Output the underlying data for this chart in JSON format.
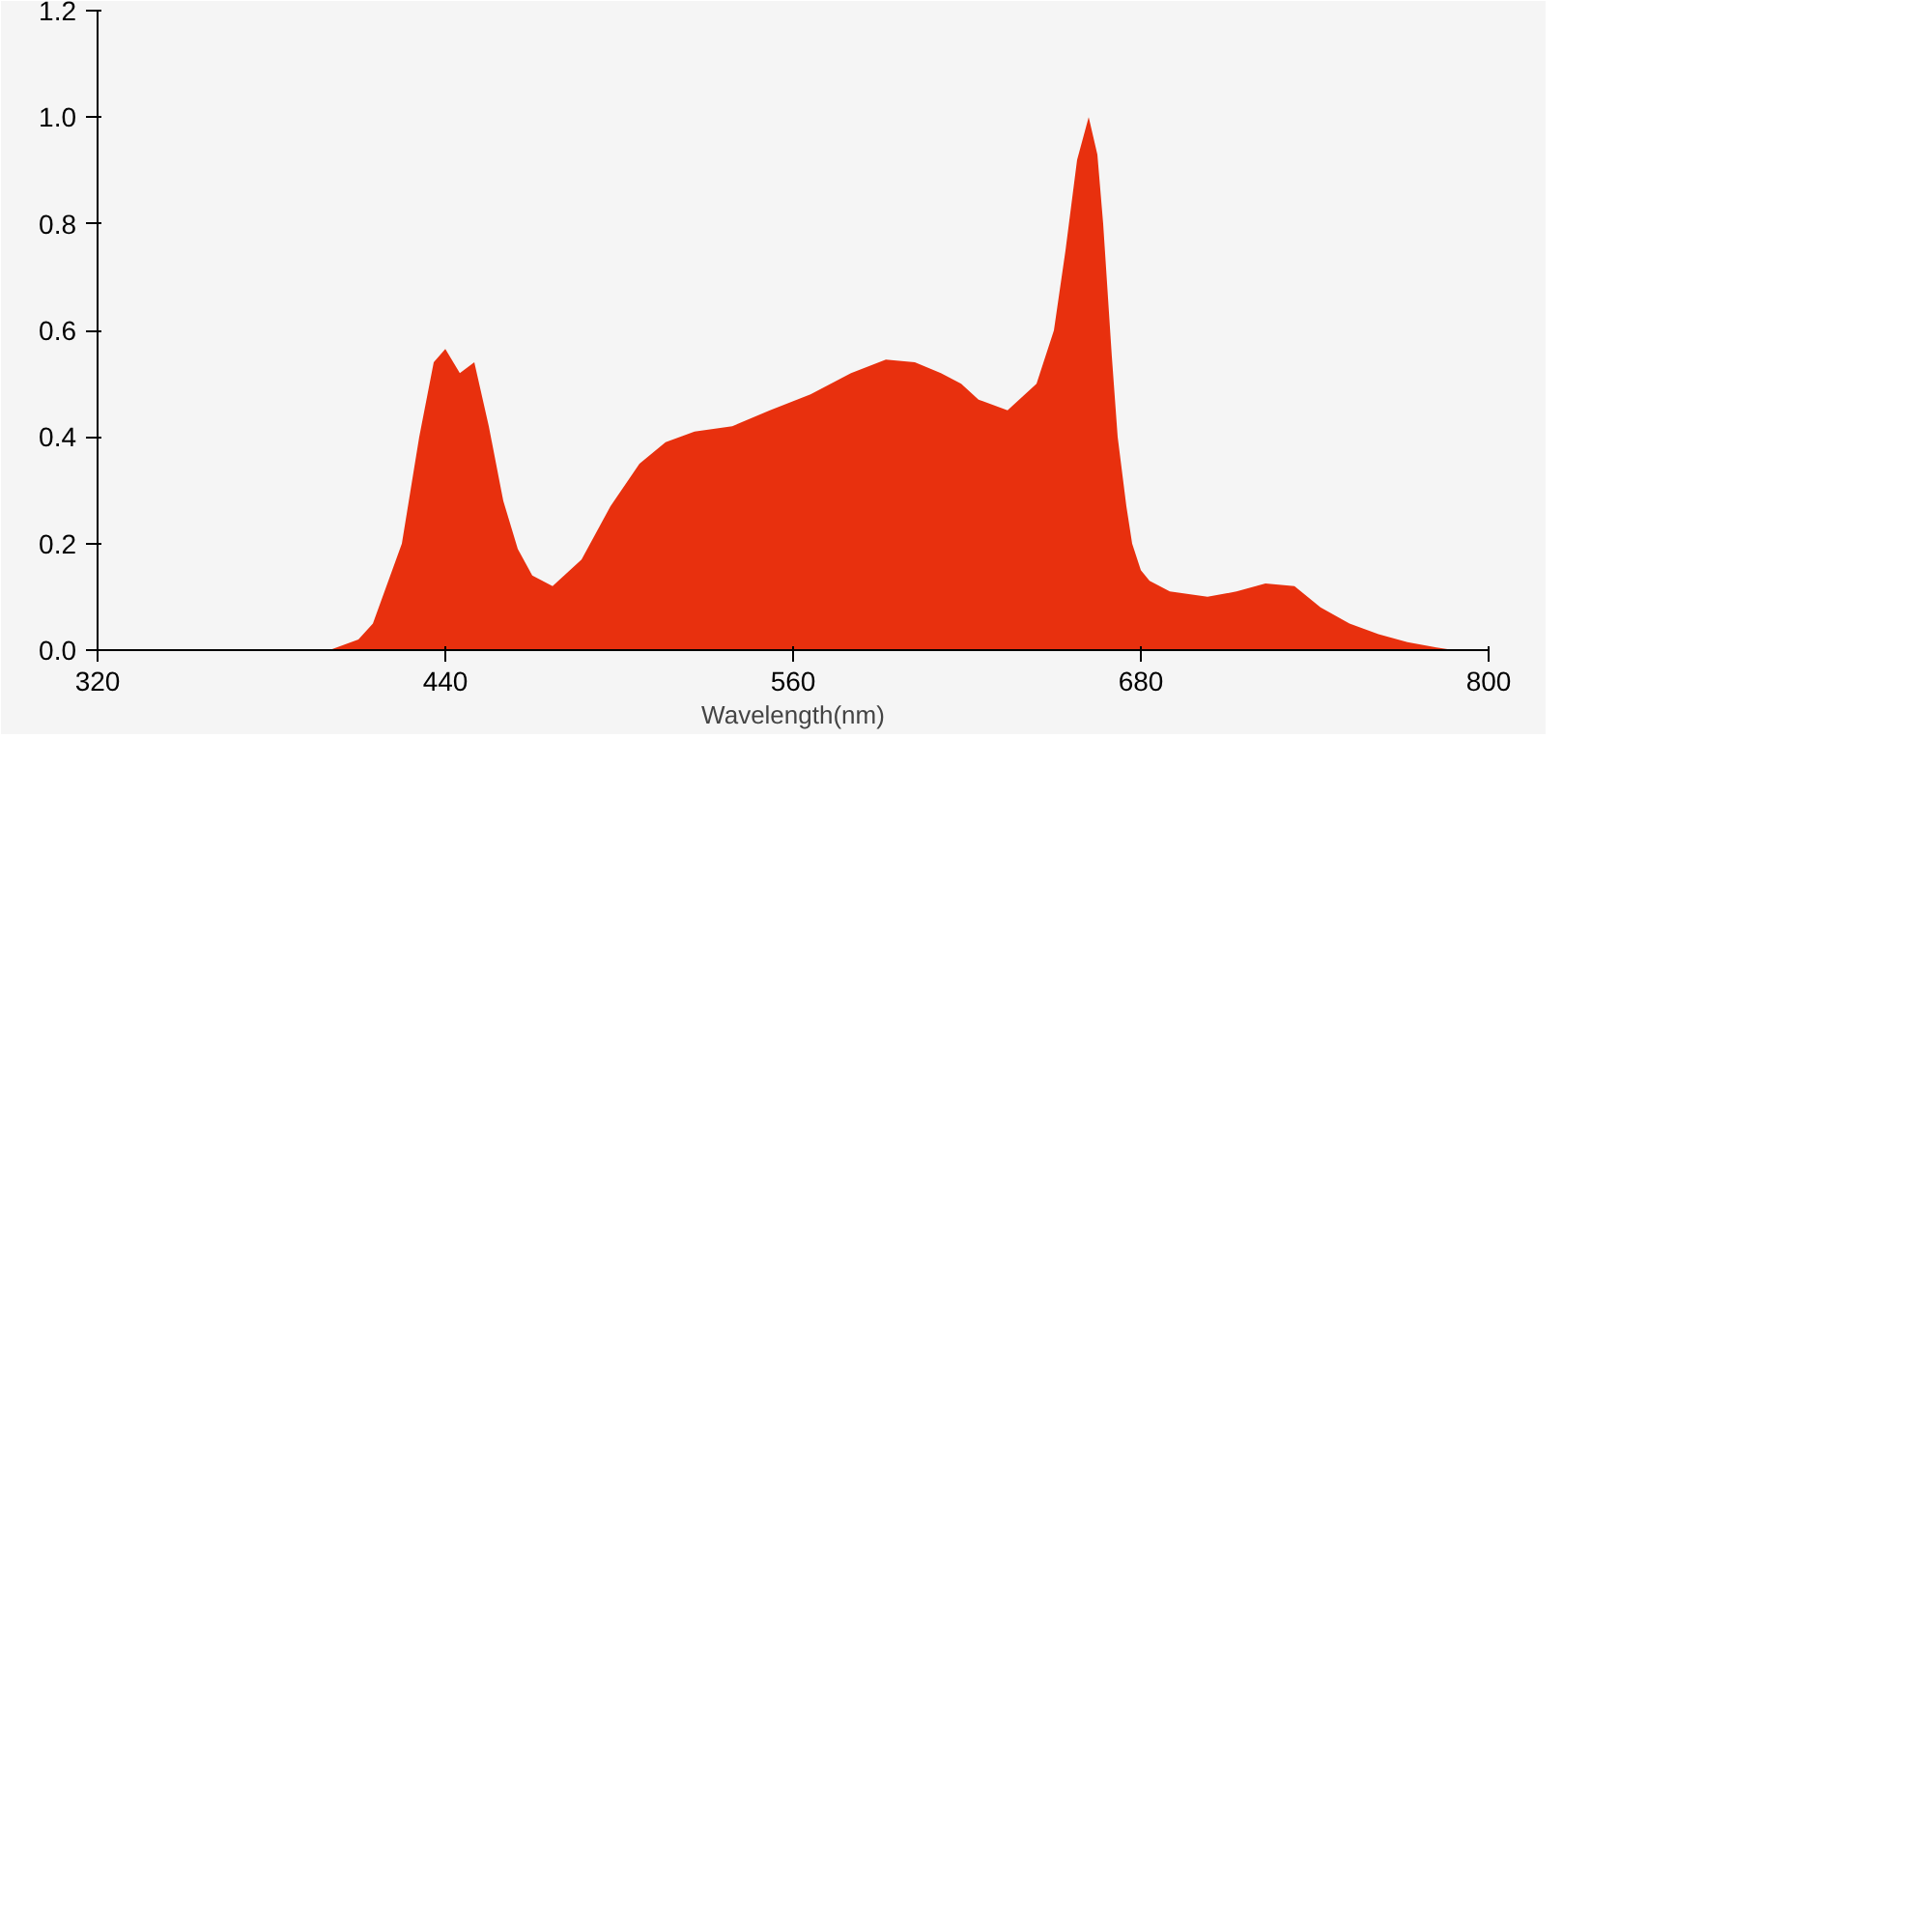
{
  "chart_data": {
    "type": "area",
    "xlabel": "Wavelength(nm)",
    "color": "#e8300e",
    "x": [
      400,
      410,
      415,
      425,
      431,
      436,
      440,
      445,
      450,
      455,
      460,
      465,
      470,
      477,
      487,
      497,
      507,
      516,
      526,
      539,
      552,
      566,
      580,
      592,
      602,
      611,
      618,
      624,
      634,
      644,
      650,
      654,
      658,
      662,
      665,
      667,
      670,
      672,
      675,
      677,
      680,
      683,
      690,
      703,
      713,
      723,
      733,
      742,
      752,
      762,
      772,
      782,
      788
    ],
    "values": [
      0.0,
      0.02,
      0.05,
      0.2,
      0.4,
      0.54,
      0.565,
      0.52,
      0.54,
      0.42,
      0.28,
      0.19,
      0.14,
      0.12,
      0.17,
      0.27,
      0.35,
      0.39,
      0.41,
      0.42,
      0.45,
      0.48,
      0.52,
      0.545,
      0.54,
      0.52,
      0.5,
      0.47,
      0.45,
      0.5,
      0.6,
      0.75,
      0.92,
      1.0,
      0.93,
      0.8,
      0.55,
      0.4,
      0.27,
      0.2,
      0.15,
      0.13,
      0.11,
      0.1,
      0.11,
      0.125,
      0.12,
      0.08,
      0.05,
      0.03,
      0.015,
      0.005,
      0.0
    ],
    "xlim": [
      320,
      800
    ],
    "ylim": [
      0,
      1.2
    ],
    "xticks": [
      320,
      440,
      560,
      680,
      800
    ],
    "yticks": [
      {
        "value": 0,
        "label": "0.0"
      },
      {
        "value": 0.2,
        "label": "0.2"
      },
      {
        "value": 0.4,
        "label": "0.4"
      },
      {
        "value": 0.6,
        "label": "0.6"
      },
      {
        "value": 0.8,
        "label": "0.8"
      },
      {
        "value": 1.0,
        "label": "1.0"
      },
      {
        "value": 1.2,
        "label": "1.2"
      }
    ],
    "grid": false
  }
}
